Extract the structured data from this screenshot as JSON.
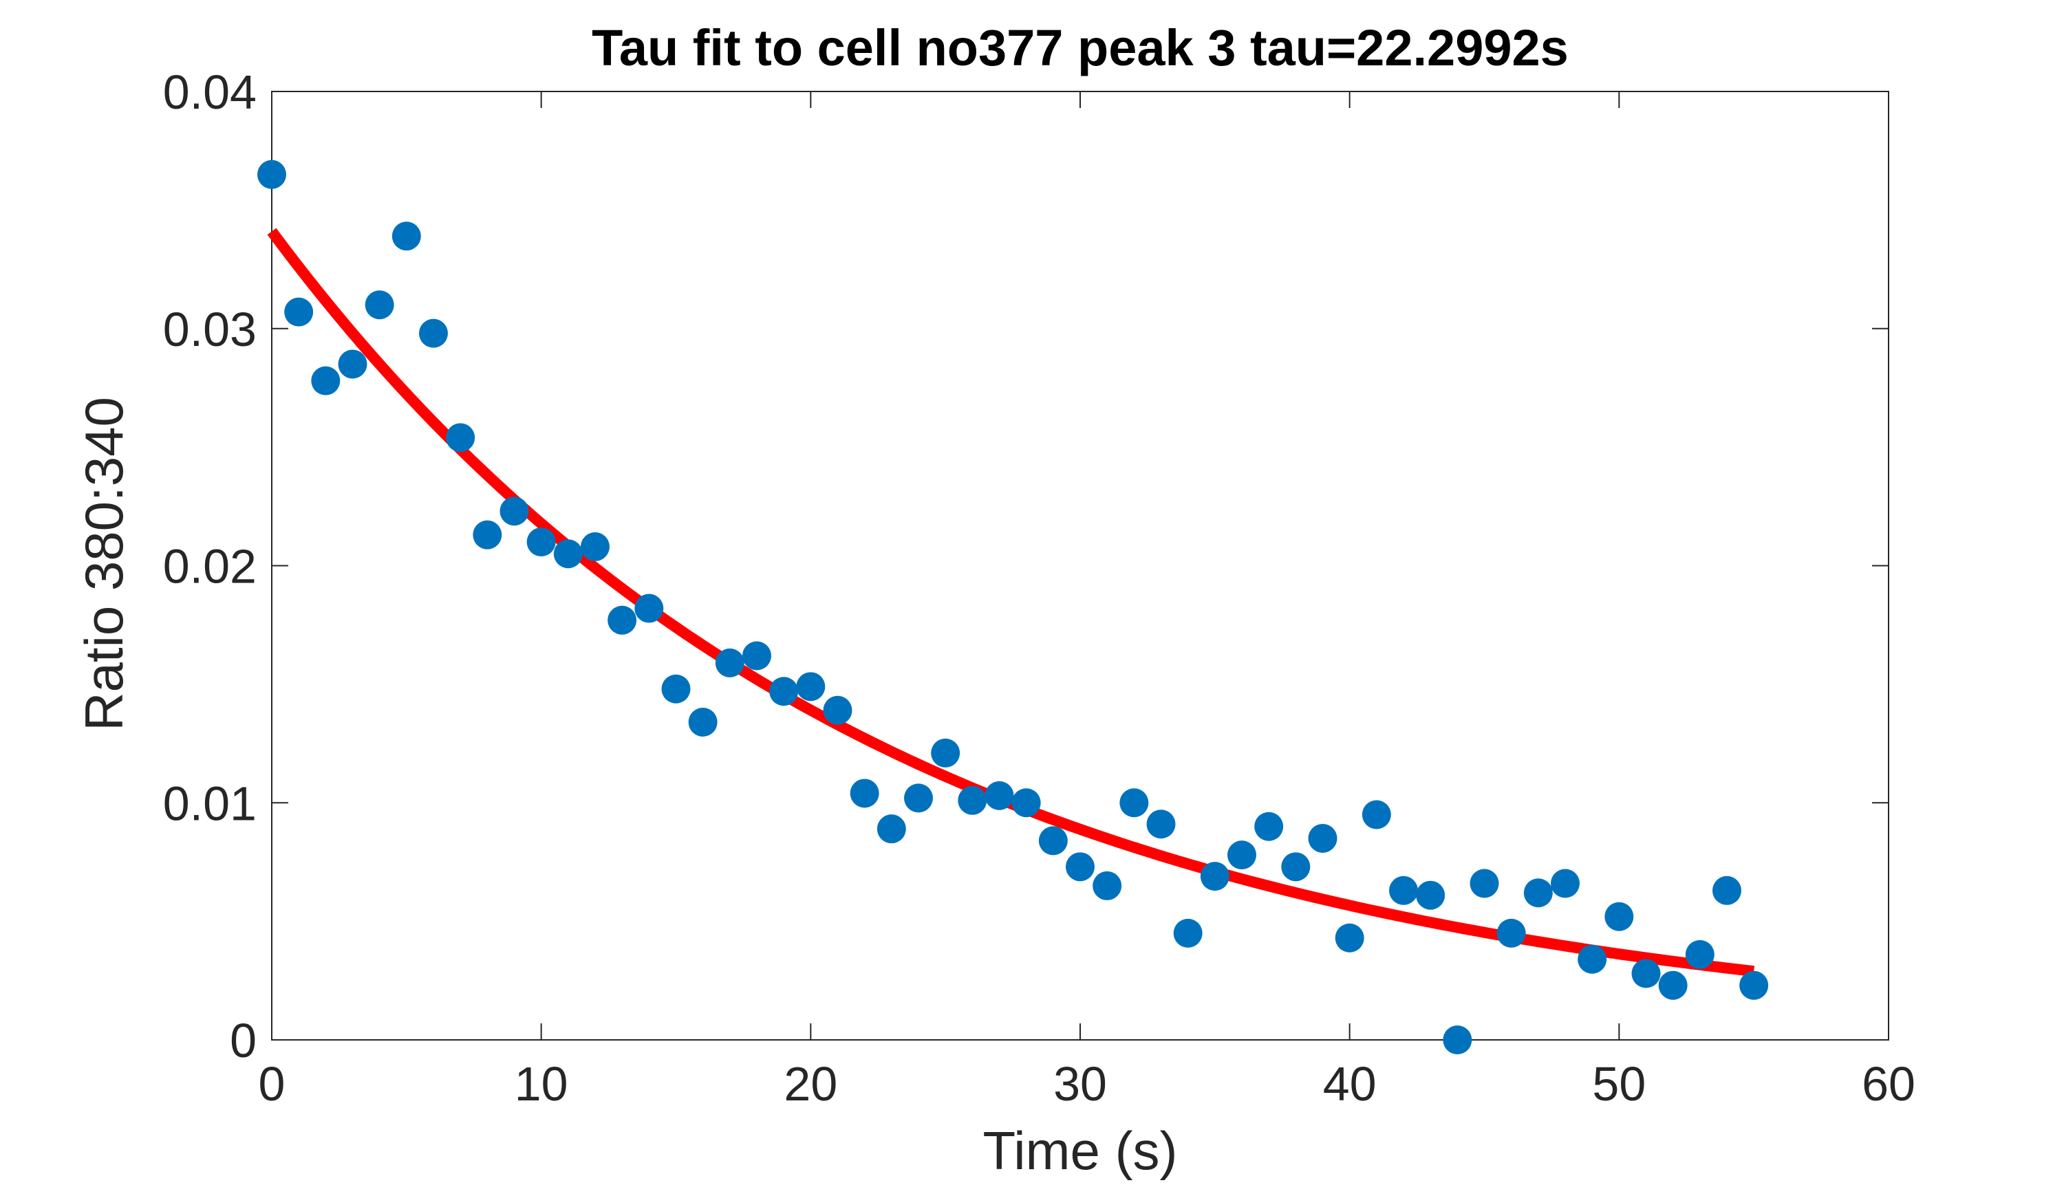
{
  "chart_data": {
    "type": "scatter",
    "title": "Tau fit to cell no377 peak 3 tau=22.2992s",
    "xlabel": "Time (s)",
    "ylabel": "Ratio 380:340",
    "xlim": [
      0,
      60
    ],
    "ylim": [
      0,
      0.04
    ],
    "x_ticks": [
      "0",
      "10",
      "20",
      "30",
      "40",
      "50",
      "60"
    ],
    "y_ticks": [
      "0",
      "0.01",
      "0.02",
      "0.03",
      "0.04"
    ],
    "grid": false,
    "legend": "none",
    "series": [
      {
        "kind": "scatter",
        "color": "#0072BD",
        "x": [
          0,
          1,
          2,
          3,
          4,
          5,
          6,
          7,
          8,
          9,
          10,
          11,
          12,
          13,
          14,
          15,
          16,
          17,
          18,
          19,
          20,
          21,
          22,
          23,
          24,
          25,
          26,
          27,
          28,
          29,
          30,
          31,
          32,
          33,
          34,
          35,
          36,
          37,
          38,
          39,
          40,
          41,
          42,
          43,
          44,
          45,
          46,
          47,
          48,
          49,
          50,
          51,
          52,
          53,
          54,
          55
        ],
        "y": [
          0.0365,
          0.0307,
          0.0278,
          0.0285,
          0.031,
          0.0339,
          0.0298,
          0.0254,
          0.0213,
          0.0223,
          0.021,
          0.0205,
          0.0208,
          0.0177,
          0.0182,
          0.0148,
          0.0134,
          0.0159,
          0.0162,
          0.0147,
          0.0149,
          0.0139,
          0.0104,
          0.0089,
          0.0102,
          0.0121,
          0.0101,
          0.0103,
          0.01,
          0.0084,
          0.0073,
          0.0065,
          0.01,
          0.0091,
          0.0045,
          0.0069,
          0.0078,
          0.009,
          0.0073,
          0.0085,
          0.0043,
          0.0095,
          0.0063,
          0.0061,
          0.0,
          0.0066,
          0.0045,
          0.0062,
          0.0066,
          0.0034,
          0.0052,
          0.0028,
          0.0023,
          0.0036,
          0.0063,
          0.0023
        ]
      },
      {
        "kind": "fit-line",
        "color": "#FF0000",
        "model": "exponential decay",
        "amplitude": 0.0341,
        "tau": 22.2992,
        "x_range": [
          0,
          55
        ]
      }
    ]
  }
}
